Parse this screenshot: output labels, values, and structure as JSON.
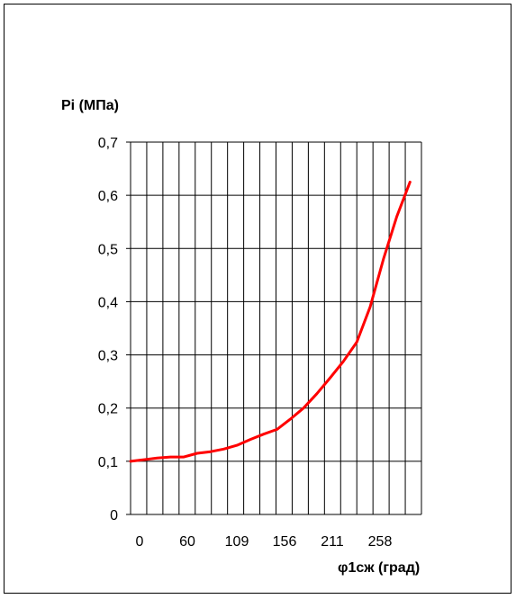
{
  "chart_data": {
    "type": "line",
    "ylabel": "Pi  (МПа)",
    "xlabel": "φ1сж  (град)",
    "ylim": [
      0,
      0.7
    ],
    "y_ticks": [
      "0",
      "0,1",
      "0,2",
      "0,3",
      "0,4",
      "0,5",
      "0,6",
      "0,7"
    ],
    "x_tick_labels": [
      "0",
      "60",
      "109",
      "156",
      "211",
      "258"
    ],
    "grid": true,
    "series": [
      {
        "color": "#ff0000",
        "x": [
          0,
          14,
          28,
          42,
          56,
          70,
          84,
          98,
          112,
          126,
          140,
          154,
          168,
          182,
          196,
          210,
          224,
          238,
          252,
          266,
          280,
          294
        ],
        "values": [
          0.1,
          0.103,
          0.106,
          0.108,
          0.108,
          0.115,
          0.118,
          0.123,
          0.13,
          0.141,
          0.151,
          0.16,
          0.179,
          0.2,
          0.227,
          0.257,
          0.288,
          0.324,
          0.39,
          0.48,
          0.56,
          0.625
        ]
      }
    ]
  }
}
